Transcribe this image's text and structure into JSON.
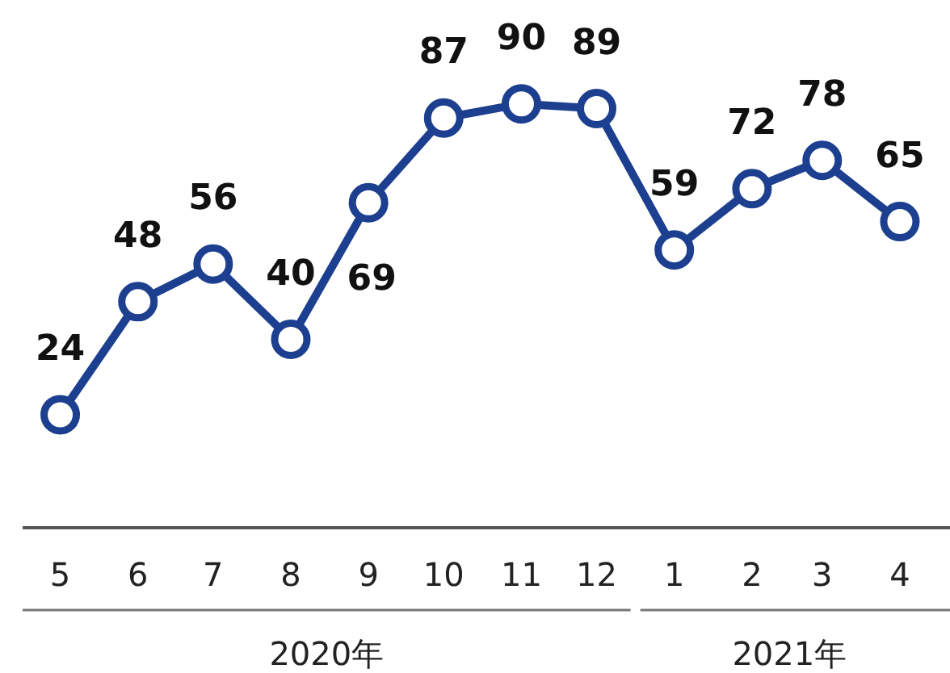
{
  "chart_data": {
    "type": "line",
    "x": [
      "2020-05",
      "2020-06",
      "2020-07",
      "2020-08",
      "2020-09",
      "2020-10",
      "2020-11",
      "2020-12",
      "2021-01",
      "2021-02",
      "2021-03",
      "2021-04"
    ],
    "xlim": [
      "2020-04-16",
      "2021-04-21"
    ],
    "xticks": [
      {
        "value": "2020-05",
        "label": "5"
      },
      {
        "value": "2020-06",
        "label": "6"
      },
      {
        "value": "2020-07",
        "label": "7"
      },
      {
        "value": "2020-08",
        "label": "8"
      },
      {
        "value": "2020-09",
        "label": "9"
      },
      {
        "value": "2020-10",
        "label": "10"
      },
      {
        "value": "2020-11",
        "label": "11"
      },
      {
        "value": "2020-12",
        "label": "12"
      },
      {
        "value": "2021-01",
        "label": "1"
      },
      {
        "value": "2021-02",
        "label": "2"
      },
      {
        "value": "2021-03",
        "label": "3"
      },
      {
        "value": "2021-04",
        "label": "4"
      }
    ],
    "series": [
      {
        "color": "#1d3f8f",
        "values": [
          24,
          48,
          56,
          40,
          69,
          87,
          90,
          89,
          59,
          72,
          78,
          65
        ]
      }
    ],
    "marker": "circle",
    "data_labels": true,
    "annotations": [
      "2020年",
      "2021年"
    ]
  }
}
